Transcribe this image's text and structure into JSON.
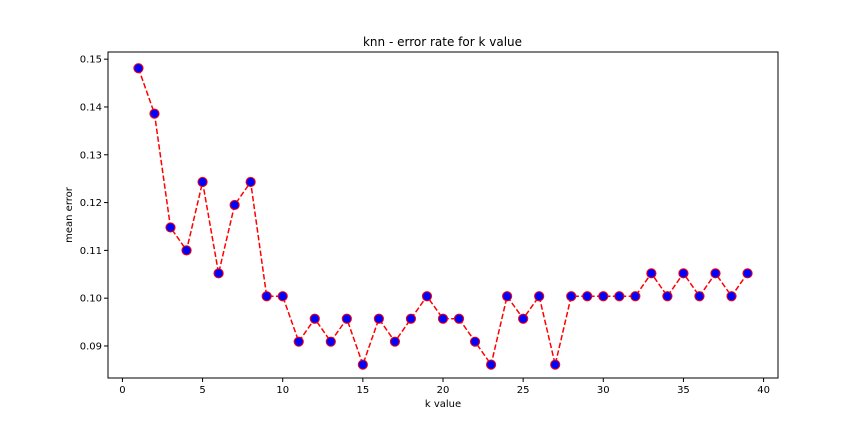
{
  "chart_data": {
    "type": "line",
    "title": "knn - error rate for k value",
    "xlabel": "k value",
    "ylabel": "mean error",
    "xlim": [
      -0.9,
      40.9
    ],
    "ylim": [
      0.0833,
      0.1515
    ],
    "xticks": [
      0,
      5,
      10,
      15,
      20,
      25,
      30,
      35,
      40
    ],
    "xtick_labels": [
      "0",
      "5",
      "10",
      "15",
      "20",
      "25",
      "30",
      "35",
      "40"
    ],
    "yticks": [
      0.09,
      0.1,
      0.11,
      0.12,
      0.13,
      0.14,
      0.15
    ],
    "ytick_labels": [
      "0.09",
      "0.10",
      "0.11",
      "0.12",
      "0.13",
      "0.14",
      "0.15"
    ],
    "grid": false,
    "line_color": "#ff0000",
    "line_style": "dashed",
    "marker_face_color": "#0000ff",
    "marker_edge_color": "#ff0000",
    "series": [
      {
        "x": [
          1,
          2,
          3,
          4,
          5,
          6,
          7,
          8,
          9,
          10,
          11,
          12,
          13,
          14,
          15,
          16,
          17,
          18,
          19,
          20,
          21,
          22,
          23,
          24,
          25,
          26,
          27,
          28,
          29,
          30,
          31,
          32,
          33,
          34,
          35,
          36,
          37,
          38,
          39
        ],
        "values": [
          0.1481,
          0.1386,
          0.1148,
          0.11,
          0.1243,
          0.1052,
          0.1195,
          0.1243,
          0.1004,
          0.1004,
          0.0909,
          0.0957,
          0.0909,
          0.0957,
          0.0861,
          0.0957,
          0.0909,
          0.0957,
          0.1004,
          0.0957,
          0.0957,
          0.0909,
          0.0861,
          0.1004,
          0.0957,
          0.1004,
          0.0861,
          0.1004,
          0.1004,
          0.1004,
          0.1004,
          0.1004,
          0.1052,
          0.1004,
          0.1052,
          0.1004,
          0.1052,
          0.1004,
          0.1052
        ]
      }
    ]
  }
}
